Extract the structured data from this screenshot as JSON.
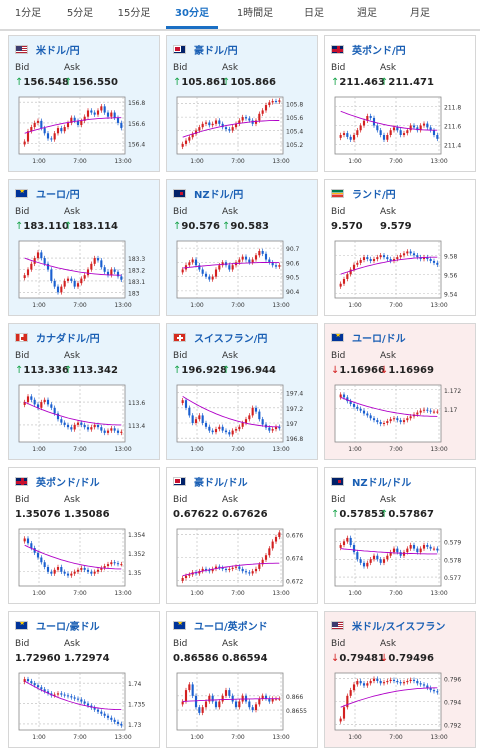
{
  "tabs": [
    {
      "label": "1分足",
      "active": false
    },
    {
      "label": "5分足",
      "active": false
    },
    {
      "label": "15分足",
      "active": false
    },
    {
      "label": "30分足",
      "active": true
    },
    {
      "label": "1時間足",
      "active": false
    },
    {
      "label": "日足",
      "active": false
    },
    {
      "label": "週足",
      "active": false
    },
    {
      "label": "月足",
      "active": false
    }
  ],
  "labels": {
    "bid": "Bid",
    "ask": "Ask"
  },
  "colors": {
    "accent": "#1a6fc4",
    "up_candle": "#d32020",
    "down_candle": "#1a5fd0",
    "ma_line": "#b000c8",
    "arrow_up": "#17a34a",
    "arrow_down": "#d32020"
  },
  "icons": {
    "arrow_up": "↑",
    "arrow_down": "↓"
  },
  "cards": [
    {
      "name": "usdjpy",
      "pair": "米ドル/円",
      "flag": "us",
      "bid": "156.548",
      "ask": "156.550",
      "dir": "up",
      "tint": "blue",
      "chart_data": {
        "type": "candlestick",
        "ylim": [
          156.3,
          156.85
        ],
        "yticks": [
          "156.8",
          "156.6",
          "156.4"
        ],
        "ytick_values": [
          156.8,
          156.6,
          156.4
        ],
        "xticks": [
          "1:00",
          "7:00",
          "13:00"
        ],
        "closes": [
          156.42,
          156.52,
          156.56,
          156.6,
          156.62,
          156.55,
          156.5,
          156.45,
          156.44,
          156.5,
          156.55,
          156.52,
          156.56,
          156.6,
          156.65,
          156.62,
          156.58,
          156.62,
          156.66,
          156.72,
          156.7,
          156.68,
          156.72,
          156.76,
          156.7,
          156.66,
          156.7,
          156.65,
          156.6,
          156.55
        ],
        "ma": [
          156.5,
          156.65
        ]
      }
    },
    {
      "name": "audjpy",
      "pair": "豪ドル/円",
      "flag": "au",
      "bid": "105.861",
      "ask": "105.866",
      "dir": "up",
      "tint": "blue",
      "chart_data": {
        "type": "candlestick",
        "ylim": [
          105.05,
          105.9
        ],
        "yticks": [
          "105.8",
          "105.6",
          "105.4",
          "105.2"
        ],
        "ytick_values": [
          105.8,
          105.6,
          105.4,
          105.2
        ],
        "xticks": [
          "1:00",
          "7:00",
          "13:00"
        ],
        "closes": [
          105.2,
          105.25,
          105.3,
          105.35,
          105.4,
          105.45,
          105.5,
          105.52,
          105.48,
          105.5,
          105.55,
          105.5,
          105.45,
          105.42,
          105.4,
          105.45,
          105.5,
          105.55,
          105.6,
          105.58,
          105.55,
          105.5,
          105.55,
          105.65,
          105.7,
          105.78,
          105.82,
          105.84,
          105.83,
          105.85
        ],
        "ma": [
          105.3,
          105.55
        ]
      }
    },
    {
      "name": "gbpjpy",
      "pair": "英ポンド/円",
      "flag": "gb",
      "bid": "211.463",
      "ask": "211.471",
      "dir": "up",
      "tint": "none",
      "chart_data": {
        "type": "candlestick",
        "ylim": [
          211.3,
          211.9
        ],
        "yticks": [
          "211.8",
          "211.6",
          "211.4"
        ],
        "ytick_values": [
          211.8,
          211.6,
          211.4
        ],
        "xticks": [
          "1:00",
          "7:00",
          "13:00"
        ],
        "closes": [
          211.5,
          211.52,
          211.48,
          211.45,
          211.5,
          211.55,
          211.6,
          211.65,
          211.7,
          211.68,
          211.6,
          211.55,
          211.5,
          211.45,
          211.5,
          211.55,
          211.58,
          211.55,
          211.5,
          211.52,
          211.55,
          211.6,
          211.58,
          211.55,
          211.6,
          211.62,
          211.58,
          211.55,
          211.5,
          211.46
        ],
        "ma": [
          211.75,
          211.55
        ]
      }
    },
    {
      "name": "eurjpy",
      "pair": "ユーロ/円",
      "flag": "eu",
      "bid": "183.110",
      "ask": "183.114",
      "dir": "up",
      "tint": "blue",
      "chart_data": {
        "type": "candlestick",
        "ylim": [
          182.95,
          183.45
        ],
        "yticks": [
          "183.3",
          "183.2",
          "183.1",
          "183"
        ],
        "ytick_values": [
          183.3,
          183.2,
          183.1,
          183.0
        ],
        "xticks": [
          "1:00",
          "7:00",
          "13:00"
        ],
        "closes": [
          183.15,
          183.2,
          183.25,
          183.3,
          183.35,
          183.3,
          183.25,
          183.2,
          183.1,
          183.05,
          183.0,
          183.05,
          183.1,
          183.12,
          183.1,
          183.05,
          183.08,
          183.12,
          183.15,
          183.2,
          183.25,
          183.3,
          183.28,
          183.22,
          183.18,
          183.15,
          183.2,
          183.18,
          183.14,
          183.11
        ],
        "ma": [
          183.3,
          183.15
        ]
      }
    },
    {
      "name": "nzdjpy",
      "pair": "NZドル/円",
      "flag": "nz",
      "bid": "90.576",
      "ask": "90.583",
      "dir": "up",
      "tint": "blue",
      "chart_data": {
        "type": "candlestick",
        "ylim": [
          90.35,
          90.75
        ],
        "yticks": [
          "90.7",
          "90.6",
          "90.5",
          "90.4"
        ],
        "ytick_values": [
          90.7,
          90.6,
          90.5,
          90.4
        ],
        "xticks": [
          "1:00",
          "7:00",
          "13:00"
        ],
        "closes": [
          90.55,
          90.58,
          90.6,
          90.62,
          90.58,
          90.55,
          90.52,
          90.5,
          90.48,
          90.5,
          90.55,
          90.58,
          90.6,
          90.58,
          90.55,
          90.58,
          90.6,
          90.62,
          90.64,
          90.62,
          90.6,
          90.62,
          90.65,
          90.68,
          90.66,
          90.62,
          90.6,
          90.58,
          90.57,
          90.58
        ],
        "ma": [
          90.56,
          90.6
        ]
      }
    },
    {
      "name": "zarjpy",
      "pair": "ランド/円",
      "flag": "za",
      "bid": "9.570",
      "ask": "9.579",
      "dir": "none",
      "tint": "none",
      "chart_data": {
        "type": "candlestick",
        "ylim": [
          9.535,
          9.595
        ],
        "yticks": [
          "9.58",
          "9.56",
          "9.54"
        ],
        "ytick_values": [
          9.58,
          9.56,
          9.54
        ],
        "xticks": [
          "1:00",
          "7:00",
          "13:00"
        ],
        "closes": [
          9.55,
          9.555,
          9.56,
          9.565,
          9.57,
          9.572,
          9.575,
          9.578,
          9.576,
          9.574,
          9.576,
          9.578,
          9.58,
          9.578,
          9.576,
          9.574,
          9.576,
          9.578,
          9.58,
          9.582,
          9.584,
          9.582,
          9.58,
          9.578,
          9.576,
          9.578,
          9.576,
          9.574,
          9.572,
          9.57
        ],
        "ma": [
          9.56,
          9.578
        ]
      }
    },
    {
      "name": "cadjpy",
      "pair": "カナダドル/円",
      "flag": "ca",
      "bid": "113.336",
      "ask": "113.342",
      "dir": "up",
      "tint": "blue",
      "chart_data": {
        "type": "candlestick",
        "ylim": [
          113.25,
          113.75
        ],
        "yticks": [
          "113.6",
          "113.4"
        ],
        "ytick_values": [
          113.6,
          113.4
        ],
        "xticks": [
          "1:00",
          "7:00",
          "13:00"
        ],
        "closes": [
          113.6,
          113.65,
          113.62,
          113.58,
          113.55,
          113.6,
          113.62,
          113.58,
          113.55,
          113.5,
          113.45,
          113.42,
          113.4,
          113.38,
          113.36,
          113.4,
          113.42,
          113.4,
          113.38,
          113.36,
          113.38,
          113.4,
          113.38,
          113.35,
          113.33,
          113.35,
          113.37,
          113.35,
          113.33,
          113.34
        ],
        "ma": [
          113.6,
          113.4
        ]
      }
    },
    {
      "name": "chfjpy",
      "pair": "スイスフラン/円",
      "flag": "ch",
      "bid": "196.928",
      "ask": "196.944",
      "dir": "up",
      "tint": "blue",
      "chart_data": {
        "type": "candlestick",
        "ylim": [
          196.75,
          197.5
        ],
        "yticks": [
          "197.4",
          "197.2",
          "197",
          "196.8"
        ],
        "ytick_values": [
          197.4,
          197.2,
          197.0,
          196.8
        ],
        "xticks": [
          "1:00",
          "7:00",
          "13:00"
        ],
        "closes": [
          197.3,
          197.2,
          197.1,
          197.0,
          197.05,
          197.1,
          197.0,
          196.95,
          196.9,
          196.88,
          196.92,
          196.95,
          196.9,
          196.88,
          196.85,
          196.9,
          196.92,
          196.95,
          197.0,
          197.05,
          197.1,
          197.2,
          197.15,
          197.05,
          196.98,
          196.94,
          196.9,
          196.92,
          196.95,
          196.93
        ],
        "ma": [
          197.35,
          196.95
        ]
      }
    },
    {
      "name": "eurusd",
      "pair": "ユーロ/ドル",
      "flag": "eu",
      "bid": "1.16966",
      "ask": "1.16969",
      "dir": "down",
      "tint": "red",
      "chart_data": {
        "type": "candlestick",
        "ylim": [
          1.1665,
          1.1725
        ],
        "yticks": [
          "1.172",
          "1.17"
        ],
        "ytick_values": [
          1.172,
          1.17
        ],
        "xticks": [
          "1:00",
          "7:00",
          "13:00"
        ],
        "closes": [
          1.1715,
          1.1712,
          1.1708,
          1.1705,
          1.1702,
          1.17,
          1.1698,
          1.1695,
          1.1693,
          1.169,
          1.1688,
          1.1686,
          1.1684,
          1.1685,
          1.1687,
          1.1689,
          1.169,
          1.1688,
          1.1686,
          1.1688,
          1.169,
          1.1692,
          1.1694,
          1.1696,
          1.1698,
          1.1699,
          1.1698,
          1.1697,
          1.1697,
          1.1697
        ],
        "ma": [
          1.1712,
          1.1692
        ]
      }
    },
    {
      "name": "gbpusd",
      "pair": "英ポンド/ドル",
      "flag": "gb",
      "bid": "1.35076",
      "ask": "1.35086",
      "dir": "none",
      "tint": "none",
      "chart_data": {
        "type": "candlestick",
        "ylim": [
          1.3485,
          1.3545
        ],
        "yticks": [
          "1.354",
          "1.352",
          "1.35"
        ],
        "ytick_values": [
          1.354,
          1.352,
          1.35
        ],
        "xticks": [
          "1:00",
          "7:00",
          "13:00"
        ],
        "closes": [
          1.3535,
          1.353,
          1.3525,
          1.352,
          1.3515,
          1.351,
          1.3505,
          1.35,
          1.3498,
          1.3502,
          1.3505,
          1.35,
          1.3498,
          1.3496,
          1.3498,
          1.35,
          1.3502,
          1.3504,
          1.3502,
          1.35,
          1.3498,
          1.35,
          1.3502,
          1.3504,
          1.3506,
          1.3508,
          1.351,
          1.3509,
          1.3508,
          1.3508
        ],
        "ma": [
          1.3528,
          1.3503
        ]
      }
    },
    {
      "name": "audusd",
      "pair": "豪ドル/ドル",
      "flag": "au",
      "bid": "0.67622",
      "ask": "0.67626",
      "dir": "none",
      "tint": "none",
      "chart_data": {
        "type": "candlestick",
        "ylim": [
          0.6715,
          0.6765
        ],
        "yticks": [
          "0.676",
          "0.674",
          "0.672"
        ],
        "ytick_values": [
          0.676,
          0.674,
          0.672
        ],
        "xticks": [
          "1:00",
          "7:00",
          "13:00"
        ],
        "closes": [
          0.6722,
          0.6724,
          0.6725,
          0.6727,
          0.6726,
          0.6728,
          0.673,
          0.6729,
          0.6728,
          0.673,
          0.6732,
          0.6731,
          0.673,
          0.6729,
          0.673,
          0.6731,
          0.6732,
          0.673,
          0.6728,
          0.6727,
          0.6726,
          0.6728,
          0.673,
          0.6734,
          0.6738,
          0.6742,
          0.6748,
          0.6754,
          0.6758,
          0.6762
        ],
        "ma": [
          0.6724,
          0.6735
        ]
      }
    },
    {
      "name": "nzdusd",
      "pair": "NZドル/ドル",
      "flag": "nz",
      "bid": "0.57853",
      "ask": "0.57867",
      "dir": "up",
      "tint": "none",
      "chart_data": {
        "type": "candlestick",
        "ylim": [
          0.5765,
          0.5797
        ],
        "yticks": [
          "0.579",
          "0.578",
          "0.577"
        ],
        "ytick_values": [
          0.579,
          0.578,
          0.577
        ],
        "xticks": [
          "1:00",
          "7:00",
          "13:00"
        ],
        "closes": [
          0.5788,
          0.579,
          0.5792,
          0.5788,
          0.5784,
          0.578,
          0.5778,
          0.5776,
          0.5778,
          0.578,
          0.5782,
          0.578,
          0.5778,
          0.578,
          0.5782,
          0.5784,
          0.5786,
          0.5784,
          0.5782,
          0.5784,
          0.5786,
          0.5788,
          0.5786,
          0.5784,
          0.5786,
          0.5788,
          0.5787,
          0.5786,
          0.5786,
          0.5785
        ],
        "ma": [
          0.5786,
          0.5783
        ]
      }
    },
    {
      "name": "euraud",
      "pair": "ユーロ/豪ドル",
      "flag": "eu",
      "bid": "1.72960",
      "ask": "1.72974",
      "dir": "none",
      "tint": "none",
      "chart_data": {
        "type": "candlestick",
        "ylim": [
          1.7285,
          1.7425
        ],
        "yticks": [
          "1.74",
          "1.735",
          "1.73"
        ],
        "ytick_values": [
          1.74,
          1.735,
          1.73
        ],
        "xticks": [
          "1:00",
          "7:00",
          "13:00"
        ],
        "closes": [
          1.741,
          1.7405,
          1.74,
          1.7395,
          1.739,
          1.7385,
          1.738,
          1.7375,
          1.737,
          1.7372,
          1.7375,
          1.7372,
          1.737,
          1.7368,
          1.7365,
          1.7362,
          1.736,
          1.7355,
          1.735,
          1.7345,
          1.734,
          1.7335,
          1.733,
          1.7325,
          1.732,
          1.7315,
          1.731,
          1.7305,
          1.73,
          1.7296
        ],
        "ma": [
          1.7405,
          1.7335
        ]
      }
    },
    {
      "name": "eurgbp",
      "pair": "ユーロ/英ポンド",
      "flag": "eu",
      "bid": "0.86586",
      "ask": "0.86594",
      "dir": "none",
      "tint": "none",
      "chart_data": {
        "type": "candlestick",
        "ylim": [
          0.8648,
          0.8668
        ],
        "yticks": [
          "0.866",
          "0.8655"
        ],
        "ytick_values": [
          0.866,
          0.8655
        ],
        "xticks": [
          "1:00",
          "7:00",
          "13:00"
        ],
        "closes": [
          0.8658,
          0.8662,
          0.8664,
          0.866,
          0.8656,
          0.8654,
          0.8656,
          0.8658,
          0.866,
          0.8658,
          0.8656,
          0.8658,
          0.866,
          0.8662,
          0.866,
          0.8658,
          0.8656,
          0.8658,
          0.866,
          0.8658,
          0.8656,
          0.8655,
          0.8657,
          0.8659,
          0.866,
          0.8659,
          0.8658,
          0.8659,
          0.8659,
          0.8659
        ],
        "ma": [
          0.8658,
          0.8659
        ]
      }
    },
    {
      "name": "usdchf",
      "pair": "米ドル/スイスフラン",
      "flag": "us",
      "bid": "0.79481",
      "ask": "0.79496",
      "dir": "down",
      "tint": "red",
      "chart_data": {
        "type": "candlestick",
        "ylim": [
          0.7915,
          0.7965
        ],
        "yticks": [
          "0.796",
          "0.794",
          "0.792"
        ],
        "ytick_values": [
          0.796,
          0.794,
          0.792
        ],
        "xticks": [
          "1:00",
          "7:00",
          "13:00"
        ],
        "closes": [
          0.7925,
          0.7935,
          0.7945,
          0.795,
          0.7955,
          0.7958,
          0.7956,
          0.7954,
          0.7956,
          0.7958,
          0.796,
          0.7958,
          0.7956,
          0.7957,
          0.7958,
          0.7959,
          0.7958,
          0.7957,
          0.7956,
          0.7957,
          0.7958,
          0.7959,
          0.7958,
          0.7956,
          0.7955,
          0.7954,
          0.7952,
          0.795,
          0.7949,
          0.7948
        ],
        "ma": [
          0.7935,
          0.7952
        ]
      }
    }
  ]
}
